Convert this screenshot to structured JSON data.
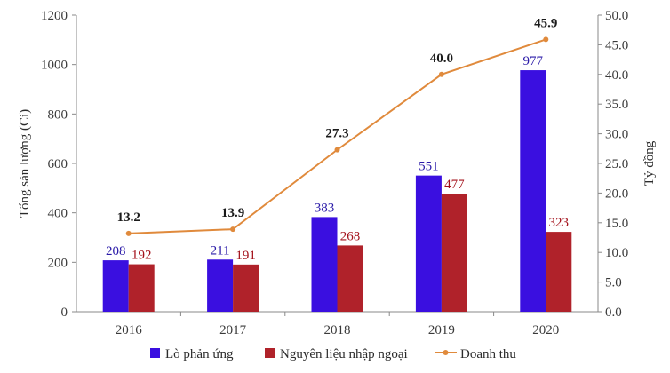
{
  "chart_data": {
    "type": "bar",
    "categories": [
      "2016",
      "2017",
      "2018",
      "2019",
      "2020"
    ],
    "series": [
      {
        "name": "Lò phản ứng",
        "type": "bar",
        "axis": "left",
        "color": "#3a0fe0",
        "values": [
          208,
          211,
          383,
          551,
          977
        ]
      },
      {
        "name": "Nguyên liệu nhập ngoại",
        "type": "bar",
        "axis": "left",
        "color": "#b0222a",
        "values": [
          192,
          191,
          268,
          477,
          323
        ]
      },
      {
        "name": "Doanh thu",
        "type": "line",
        "axis": "right",
        "color": "#e08a3c",
        "values": [
          13.2,
          13.9,
          27.3,
          40.0,
          45.9
        ]
      }
    ],
    "ylabel": "Tổng sản lượng (Ci)",
    "y2label": "Tỷ đồng",
    "ylim": [
      0,
      1200
    ],
    "y2lim": [
      0,
      50
    ],
    "yticks": [
      "0",
      "200",
      "400",
      "600",
      "800",
      "1000",
      "1200"
    ],
    "y2ticks": [
      "0.0",
      "5.0",
      "10.0",
      "15.0",
      "20.0",
      "25.0",
      "30.0",
      "35.0",
      "40.0",
      "45.0",
      "50.0"
    ],
    "line_labels": [
      "13.2",
      "13.9",
      "27.3",
      "40.0",
      "45.9"
    ],
    "grid": false,
    "legend": "bottom"
  }
}
